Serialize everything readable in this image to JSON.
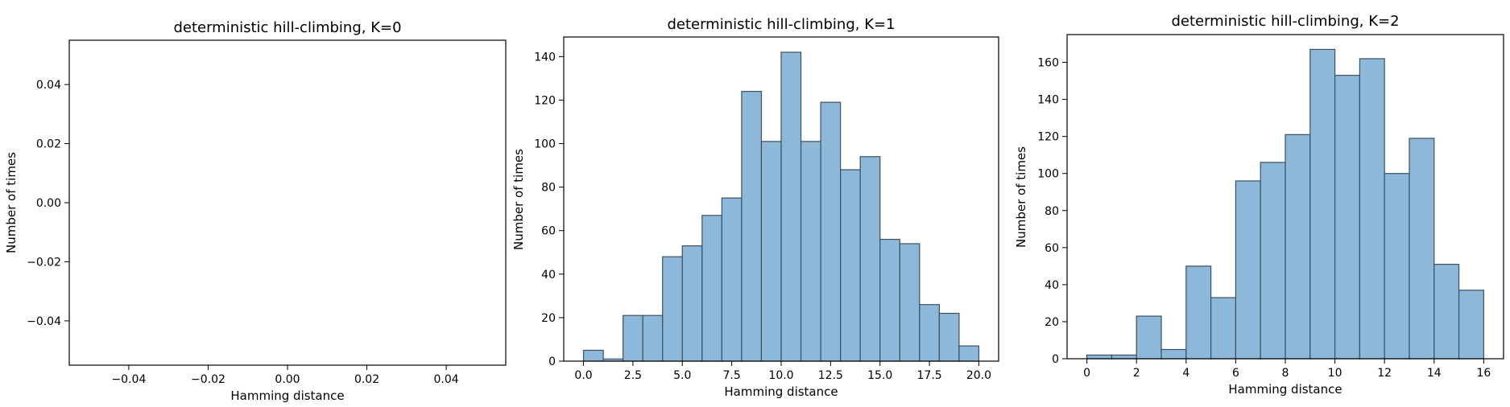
{
  "chart_data": [
    {
      "type": "bar",
      "title": "deterministic hill-climbing, K=0",
      "xlabel": "Hamming distance",
      "ylabel": "Number of times",
      "xlim": [
        -0.055,
        0.055
      ],
      "ylim": [
        -0.055,
        0.055
      ],
      "xticks": [
        -0.04,
        -0.02,
        0.0,
        0.02,
        0.04
      ],
      "yticks": [
        -0.04,
        -0.02,
        0.0,
        0.02,
        0.04
      ],
      "xtick_labels": [
        "−0.04",
        "−0.02",
        "0.00",
        "0.02",
        "0.04"
      ],
      "ytick_labels": [
        "−0.04",
        "−0.02",
        "0.00",
        "0.02",
        "0.04"
      ],
      "bins": [],
      "grid": false
    },
    {
      "type": "bar",
      "title": "deterministic hill-climbing, K=1",
      "xlabel": "Hamming distance",
      "ylabel": "Number of times",
      "xlim": [
        -1.0,
        21.0
      ],
      "ylim": [
        0,
        149
      ],
      "xticks": [
        0,
        2.5,
        5,
        7.5,
        10,
        12.5,
        15,
        17.5,
        20
      ],
      "yticks": [
        0,
        20,
        40,
        60,
        80,
        100,
        120,
        140
      ],
      "xtick_labels": [
        "0.0",
        "2.5",
        "5.0",
        "7.5",
        "10.0",
        "12.5",
        "15.0",
        "17.5",
        "20.0"
      ],
      "ytick_labels": [
        "0",
        "20",
        "40",
        "60",
        "80",
        "100",
        "120",
        "140"
      ],
      "bins": [
        {
          "x0": 0,
          "x1": 1,
          "value": 5
        },
        {
          "x0": 1,
          "x1": 2,
          "value": 1
        },
        {
          "x0": 2,
          "x1": 3,
          "value": 21
        },
        {
          "x0": 3,
          "x1": 4,
          "value": 21
        },
        {
          "x0": 4,
          "x1": 5,
          "value": 48
        },
        {
          "x0": 5,
          "x1": 6,
          "value": 53
        },
        {
          "x0": 6,
          "x1": 7,
          "value": 67
        },
        {
          "x0": 7,
          "x1": 8,
          "value": 75
        },
        {
          "x0": 8,
          "x1": 9,
          "value": 124
        },
        {
          "x0": 9,
          "x1": 10,
          "value": 101
        },
        {
          "x0": 10,
          "x1": 11,
          "value": 142
        },
        {
          "x0": 11,
          "x1": 12,
          "value": 101
        },
        {
          "x0": 12,
          "x1": 13,
          "value": 119
        },
        {
          "x0": 13,
          "x1": 14,
          "value": 88
        },
        {
          "x0": 14,
          "x1": 15,
          "value": 94
        },
        {
          "x0": 15,
          "x1": 16,
          "value": 56
        },
        {
          "x0": 16,
          "x1": 17,
          "value": 54
        },
        {
          "x0": 17,
          "x1": 18,
          "value": 26
        },
        {
          "x0": 18,
          "x1": 19,
          "value": 22
        },
        {
          "x0": 19,
          "x1": 20,
          "value": 7
        }
      ],
      "grid": false
    },
    {
      "type": "bar",
      "title": "deterministic hill-climbing, K=2",
      "xlabel": "Hamming distance",
      "ylabel": "Number of times",
      "xlim": [
        -0.8,
        16.8
      ],
      "ylim": [
        0,
        175
      ],
      "xticks": [
        0,
        2,
        4,
        6,
        8,
        10,
        12,
        14,
        16
      ],
      "yticks": [
        0,
        20,
        40,
        60,
        80,
        100,
        120,
        140,
        160
      ],
      "xtick_labels": [
        "0",
        "2",
        "4",
        "6",
        "8",
        "10",
        "12",
        "14",
        "16"
      ],
      "ytick_labels": [
        "0",
        "20",
        "40",
        "60",
        "80",
        "100",
        "120",
        "140",
        "160"
      ],
      "bins": [
        {
          "x0": 0,
          "x1": 1,
          "value": 2
        },
        {
          "x0": 1,
          "x1": 2,
          "value": 2
        },
        {
          "x0": 2,
          "x1": 3,
          "value": 23
        },
        {
          "x0": 3,
          "x1": 4,
          "value": 5
        },
        {
          "x0": 4,
          "x1": 5,
          "value": 50
        },
        {
          "x0": 5,
          "x1": 6,
          "value": 33
        },
        {
          "x0": 6,
          "x1": 7,
          "value": 96
        },
        {
          "x0": 7,
          "x1": 8,
          "value": 106
        },
        {
          "x0": 8,
          "x1": 9,
          "value": 121
        },
        {
          "x0": 9,
          "x1": 10,
          "value": 167
        },
        {
          "x0": 10,
          "x1": 11,
          "value": 153
        },
        {
          "x0": 11,
          "x1": 12,
          "value": 162
        },
        {
          "x0": 12,
          "x1": 13,
          "value": 100
        },
        {
          "x0": 13,
          "x1": 14,
          "value": 119
        },
        {
          "x0": 14,
          "x1": 15,
          "value": 51
        },
        {
          "x0": 15,
          "x1": 16,
          "value": 37
        }
      ],
      "grid": false
    }
  ],
  "colors": {
    "bar_fill": "#8db8d9",
    "bar_stroke": "#3d5160",
    "axis": "#000000",
    "background": "#ffffff"
  }
}
